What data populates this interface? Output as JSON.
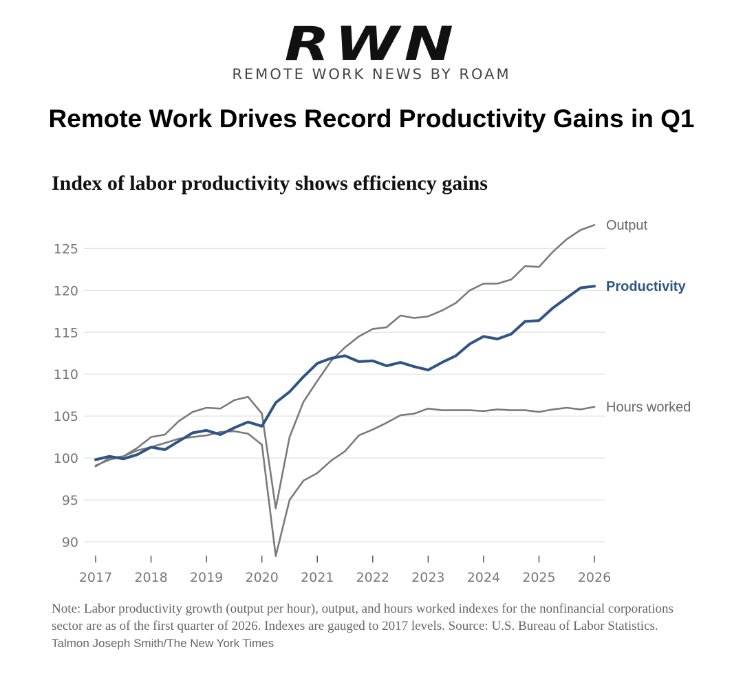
{
  "brand": {
    "logo_text": "RWN",
    "tagline": "REMOTE WORK NEWS BY ROAM"
  },
  "headline": "Remote Work Drives Record Productivity Gains in Q1",
  "colors": {
    "productivity": "#2f5486",
    "gray_line": "#7a7a7a",
    "grid": "#e2e2e2",
    "tick_text": "#777777"
  },
  "chart_data": {
    "type": "line",
    "title": "Index of labor productivity shows efficiency gains",
    "xlabel": "",
    "ylabel": "",
    "xlim": [
      2017,
      2026
    ],
    "ylim": [
      88,
      128
    ],
    "x_ticks": [
      "2017",
      "2018",
      "2019",
      "2020",
      "2021",
      "2022",
      "2023",
      "2024",
      "2025",
      "2026"
    ],
    "y_ticks": [
      "90",
      "95",
      "100",
      "105",
      "110",
      "115",
      "120",
      "125"
    ],
    "grid": true,
    "x": [
      2017.0,
      2017.25,
      2017.5,
      2017.75,
      2018.0,
      2018.25,
      2018.5,
      2018.75,
      2019.0,
      2019.25,
      2019.5,
      2019.75,
      2020.0,
      2020.25,
      2020.5,
      2020.75,
      2021.0,
      2021.25,
      2021.5,
      2021.75,
      2022.0,
      2022.25,
      2022.5,
      2022.75,
      2023.0,
      2023.25,
      2023.5,
      2023.75,
      2024.0,
      2024.25,
      2024.5,
      2024.75,
      2025.0,
      2025.25,
      2025.5,
      2025.75,
      2026.0
    ],
    "series": [
      {
        "name": "Output",
        "emphasis": false,
        "values": [
          99.0,
          100.0,
          100.2,
          101.2,
          102.5,
          102.8,
          104.4,
          105.5,
          106.0,
          105.9,
          106.9,
          107.3,
          105.3,
          94.0,
          102.5,
          106.7,
          109.2,
          111.6,
          113.2,
          114.5,
          115.4,
          115.6,
          117.0,
          116.7,
          116.9,
          117.6,
          118.5,
          120.0,
          120.8,
          120.8,
          121.3,
          122.9,
          122.8,
          124.6,
          126.1,
          127.2,
          127.8
        ]
      },
      {
        "name": "Productivity",
        "emphasis": true,
        "values": [
          99.8,
          100.2,
          99.9,
          100.4,
          101.3,
          101.0,
          102.0,
          103.0,
          103.3,
          102.8,
          103.6,
          104.3,
          103.8,
          106.6,
          107.9,
          109.7,
          111.3,
          111.9,
          112.2,
          111.5,
          111.6,
          111.0,
          111.4,
          110.9,
          110.5,
          111.4,
          112.2,
          113.6,
          114.5,
          114.2,
          114.8,
          116.3,
          116.4,
          117.9,
          119.1,
          120.3,
          120.5
        ]
      },
      {
        "name": "Hours worked",
        "emphasis": false,
        "values": [
          99.1,
          99.8,
          100.2,
          100.9,
          101.3,
          101.8,
          102.3,
          102.5,
          102.7,
          103.1,
          103.2,
          102.9,
          101.6,
          88.3,
          95.0,
          97.3,
          98.2,
          99.7,
          100.8,
          102.7,
          103.4,
          104.2,
          105.1,
          105.3,
          105.9,
          105.7,
          105.7,
          105.7,
          105.6,
          105.8,
          105.7,
          105.7,
          105.5,
          105.8,
          106.0,
          105.8,
          106.1
        ]
      }
    ]
  },
  "note": {
    "text": "Note: Labor productivity growth (output per hour), output, and hours worked indexes for the nonfinancial corporations sector are as of the first quarter of 2026. Indexes are gauged to 2017 levels.  Source: U.S. Bureau of Labor Statistics.",
    "credit": "Talmon Joseph Smith/The New York Times"
  }
}
